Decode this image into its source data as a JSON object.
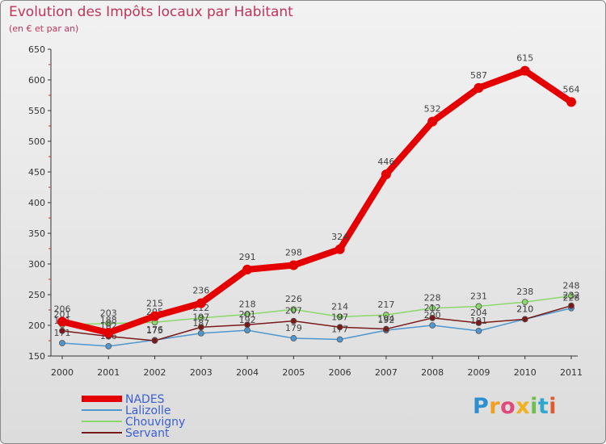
{
  "chart_data": {
    "type": "line",
    "title": "Evolution des Impôts locaux par Habitant",
    "subtitle": "(en € et par an)",
    "categories": [
      "2000",
      "2001",
      "2002",
      "2003",
      "2004",
      "2005",
      "2006",
      "2007",
      "2008",
      "2009",
      "2010",
      "2011"
    ],
    "ylim": [
      150,
      650
    ],
    "yticks": [
      150,
      200,
      250,
      300,
      350,
      400,
      450,
      500,
      550,
      600,
      650
    ],
    "grid": false,
    "legend_position": "bottom-left",
    "series": [
      {
        "name": "NADES",
        "color": "#e40000",
        "values": [
          206,
          188,
          215,
          236,
          291,
          298,
          324,
          446,
          532,
          587,
          615,
          564
        ]
      },
      {
        "name": "Lalizolle",
        "color": "#4f97cf",
        "values": [
          171,
          166,
          176,
          187,
          192,
          179,
          177,
          192,
          200,
          191,
          210,
          228
        ]
      },
      {
        "name": "Chouvigny",
        "color": "#8ad86a",
        "values": [
          201,
          203,
          205,
          212,
          218,
          226,
          214,
          217,
          228,
          231,
          238,
          248
        ]
      },
      {
        "name": "Servant",
        "color": "#7a1b1b",
        "values": [
          191,
          182,
          175,
          197,
          201,
          207,
          197,
          194,
          212,
          204,
          210,
          232
        ]
      }
    ]
  },
  "logo": {
    "letters": [
      {
        "char": "P",
        "color": "#2e8fd0"
      },
      {
        "char": "r",
        "color": "#f0a020"
      },
      {
        "char": "o",
        "color": "#e04a7a"
      },
      {
        "char": "x",
        "color": "#f0b020"
      },
      {
        "char": "i",
        "color": "#6cc04a"
      },
      {
        "char": "t",
        "color": "#2ea8d0"
      },
      {
        "char": "i",
        "color": "#e05a30"
      }
    ]
  }
}
